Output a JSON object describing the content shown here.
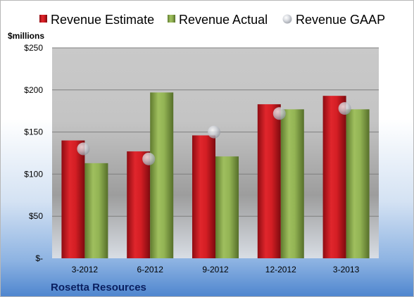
{
  "chart_data": {
    "type": "bar",
    "ylabel": "$millions",
    "ylim": [
      0,
      250
    ],
    "yticks": [
      0,
      50,
      100,
      150,
      200,
      250
    ],
    "ytick_labels": [
      "$-",
      "$50",
      "$100",
      "$150",
      "$200",
      "$250"
    ],
    "categories": [
      "3-2012",
      "6-2012",
      "9-2012",
      "12-2012",
      "3-2013"
    ],
    "series": [
      {
        "name": "Revenue Estimate",
        "kind": "bar",
        "color": "#c0141c",
        "values": [
          140,
          127,
          146,
          183,
          193
        ]
      },
      {
        "name": "Revenue Actual",
        "kind": "bar",
        "color": "#87a84a",
        "values": [
          113,
          197,
          121,
          177,
          177
        ]
      },
      {
        "name": "Revenue GAAP",
        "kind": "marker",
        "color": "#c9cdd6",
        "values": [
          130,
          118,
          150,
          172,
          178
        ]
      }
    ],
    "grid": true,
    "legend": "top"
  },
  "footer": {
    "company": "Rosetta Resources"
  }
}
